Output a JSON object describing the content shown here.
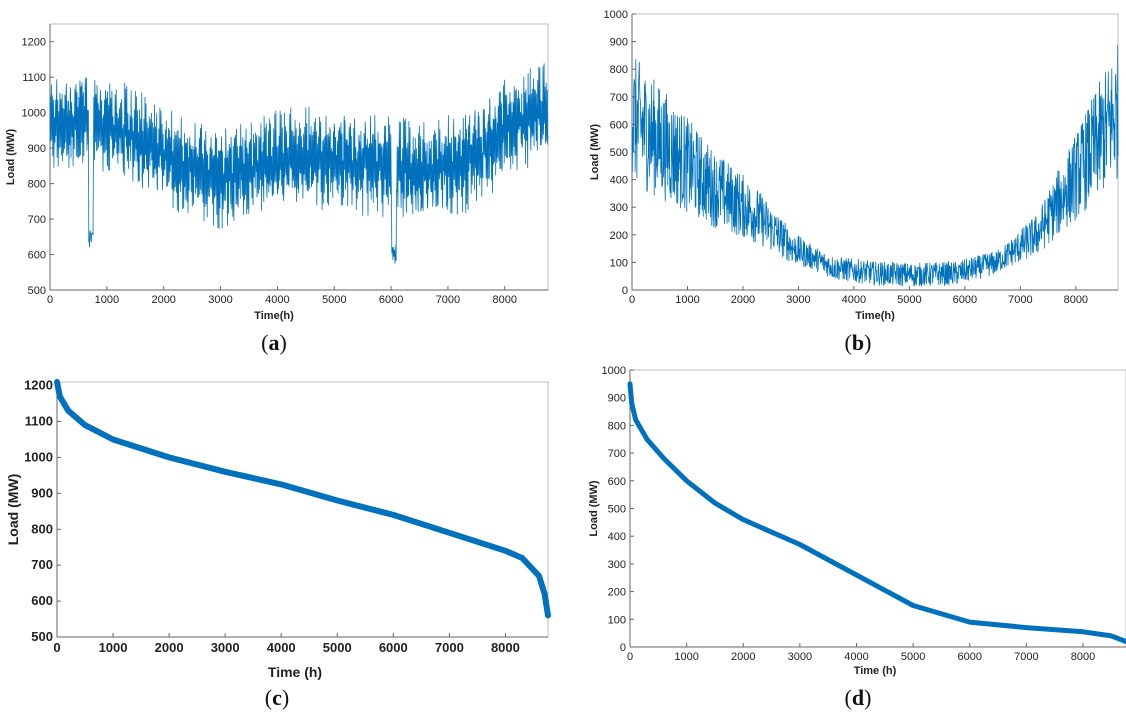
{
  "colors": {
    "series": "#0072BD",
    "axes": "#666666",
    "frame": "#bdbdbd"
  },
  "chart_data": [
    {
      "panel": "a",
      "type": "line",
      "caption": {
        "open": "(",
        "letter": "a",
        "close": ")"
      },
      "xlabel": "Time(h)",
      "ylabel": "Load (MW)",
      "xlim": [
        0,
        8760
      ],
      "ylim": [
        500,
        1250
      ],
      "xticks": [
        "0",
        "1000",
        "2000",
        "3000",
        "4000",
        "5000",
        "6000",
        "7000",
        "8000"
      ],
      "yticks": [
        "500",
        "600",
        "700",
        "800",
        "900",
        "1000",
        "1100",
        "1200"
      ],
      "series": [
        {
          "x": [
            0,
            730,
            1460,
            2190,
            2920,
            3650,
            4380,
            5110,
            5840,
            6570,
            7300,
            8030,
            8760
          ],
          "y": [
            960,
            1000,
            920,
            860,
            830,
            840,
            870,
            880,
            850,
            820,
            870,
            960,
            1000
          ]
        }
      ],
      "notes": "hourly series with daily/weekly oscillation; dips near 700h (~610 MW) and 6050h (~560 MW)"
    },
    {
      "panel": "b",
      "type": "line",
      "caption": {
        "open": "(",
        "letter": "b",
        "close": ")"
      },
      "xlabel": "Time(h)",
      "ylabel": "Load (MW)",
      "xlim": [
        0,
        8760
      ],
      "ylim": [
        0,
        1000
      ],
      "xticks": [
        "0",
        "1000",
        "2000",
        "3000",
        "4000",
        "5000",
        "6000",
        "7000",
        "8000"
      ],
      "yticks": [
        "0",
        "100",
        "200",
        "300",
        "400",
        "500",
        "600",
        "700",
        "800",
        "900",
        "1000"
      ],
      "series": [
        {
          "x": [
            0,
            730,
            1460,
            2190,
            2920,
            3650,
            4380,
            5110,
            5840,
            6570,
            7300,
            8030,
            8760
          ],
          "y": [
            620,
            500,
            370,
            280,
            150,
            80,
            60,
            55,
            60,
            100,
            200,
            420,
            650
          ]
        }
      ]
    },
    {
      "panel": "c",
      "type": "line",
      "caption": {
        "open": "(",
        "letter": "c",
        "close": ")"
      },
      "xlabel": "Time (h)",
      "ylabel": "Load (MW)",
      "xlim": [
        0,
        8760
      ],
      "ylim": [
        500,
        1210
      ],
      "xticks": [
        "0",
        "1000",
        "2000",
        "3000",
        "4000",
        "5000",
        "6000",
        "7000",
        "8000"
      ],
      "yticks": [
        "500",
        "600",
        "700",
        "800",
        "900",
        "1000",
        "1100",
        "1200"
      ],
      "series": [
        {
          "x": [
            0,
            50,
            200,
            500,
            1000,
            2000,
            3000,
            4000,
            5000,
            6000,
            7000,
            8000,
            8300,
            8600,
            8700,
            8760
          ],
          "y": [
            1210,
            1170,
            1130,
            1090,
            1050,
            1000,
            960,
            925,
            880,
            840,
            790,
            740,
            720,
            670,
            620,
            560
          ]
        }
      ]
    },
    {
      "panel": "d",
      "type": "line",
      "caption": {
        "open": "(",
        "letter": "d",
        "close": ")"
      },
      "xlabel": "Time (h)",
      "ylabel": "Load (MW)",
      "xlim": [
        0,
        8760
      ],
      "ylim": [
        0,
        1000
      ],
      "xticks": [
        "0",
        "1000",
        "2000",
        "3000",
        "4000",
        "5000",
        "6000",
        "7000",
        "8000"
      ],
      "yticks": [
        "0",
        "100",
        "200",
        "300",
        "400",
        "500",
        "600",
        "700",
        "800",
        "900",
        "1000"
      ],
      "series": [
        {
          "x": [
            0,
            30,
            100,
            300,
            600,
            1000,
            1500,
            2000,
            3000,
            4000,
            5000,
            6000,
            7000,
            8000,
            8500,
            8760
          ],
          "y": [
            950,
            880,
            820,
            750,
            680,
            600,
            520,
            460,
            370,
            260,
            150,
            90,
            70,
            55,
            40,
            20
          ]
        }
      ]
    }
  ]
}
